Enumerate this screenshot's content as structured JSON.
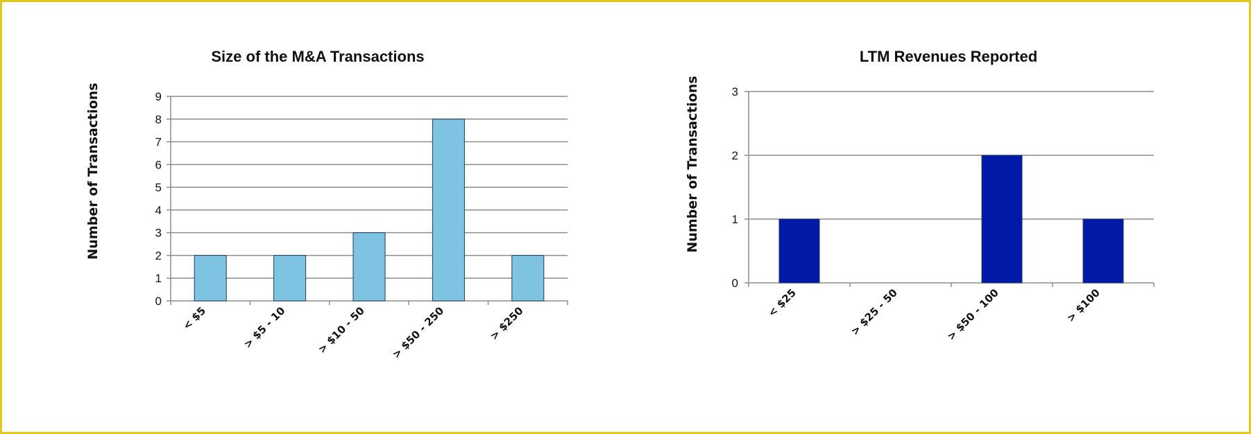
{
  "chart_data": [
    {
      "type": "bar",
      "title": "Size of the M&A Transactions",
      "xlabel": "",
      "ylabel": "Number of Transactions",
      "categories": [
        "< $5",
        "> $5 - 10",
        "> $10 - 50",
        "> $50 - 250",
        "> $250"
      ],
      "values": [
        2,
        2,
        3,
        8,
        2
      ],
      "ylim": [
        0,
        9
      ],
      "yticks": [
        "0",
        "1",
        "2",
        "3",
        "4",
        "5",
        "6",
        "7",
        "8",
        "9"
      ],
      "grid": true,
      "bar_color": "#7fc3e3"
    },
    {
      "type": "bar",
      "title": "LTM Revenues Reported",
      "xlabel": "",
      "ylabel": "Number of Transactions",
      "categories": [
        "< $25",
        "> $25 - 50",
        "> $50 - 100",
        "> $100"
      ],
      "values": [
        1,
        0,
        2,
        1
      ],
      "ylim": [
        0,
        3
      ],
      "yticks": [
        "0",
        "1",
        "2",
        "3"
      ],
      "grid": true,
      "bar_color": "#0019a6"
    }
  ],
  "colors": {
    "frame_border": "#e2c81a",
    "gridline": "#8c8c8c"
  }
}
